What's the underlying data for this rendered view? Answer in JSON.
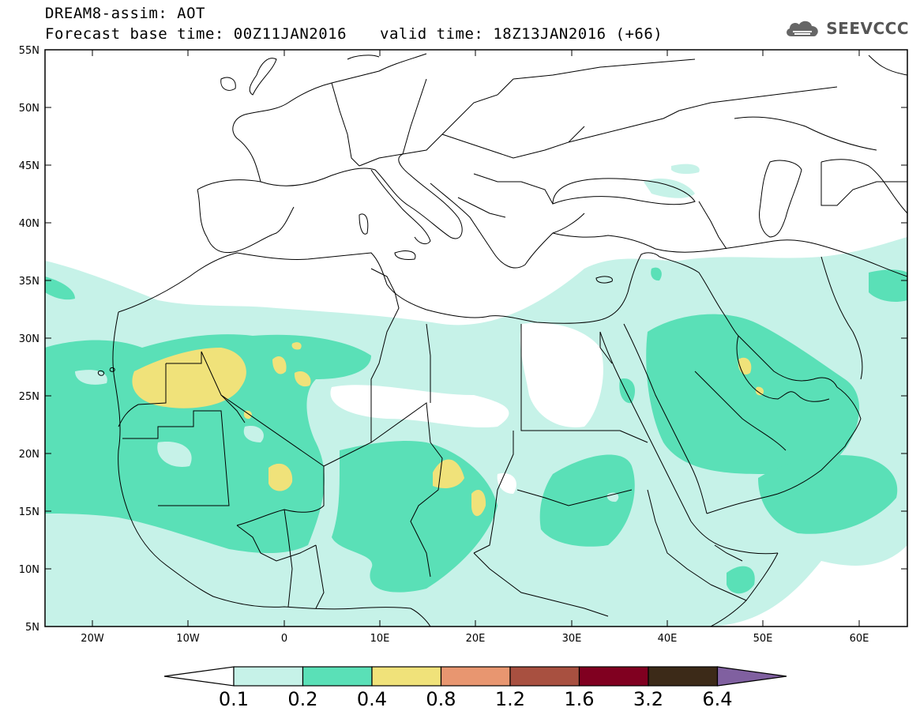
{
  "header": {
    "title": "DREAM8-assim: AOT",
    "base_time": "Forecast base time: 00Z11JAN2016",
    "valid_time": "valid time: 18Z13JAN2016 (+66)"
  },
  "logo": {
    "text": "SEEVCCC",
    "icon": "cloud-icon"
  },
  "map": {
    "lat_labels": [
      "55N",
      "50N",
      "45N",
      "40N",
      "35N",
      "30N",
      "25N",
      "20N",
      "15N",
      "10N",
      "5N"
    ],
    "lon_labels": [
      "20W",
      "10W",
      "0",
      "10E",
      "20E",
      "30E",
      "40E",
      "50E",
      "60E"
    ]
  },
  "colorbar": {
    "labels": [
      "0.1",
      "0.2",
      "0.4",
      "0.8",
      "1.2",
      "1.6",
      "3.2",
      "6.4"
    ],
    "colors": [
      "#ffffff",
      "#c6f2e8",
      "#5ae0b7",
      "#f0e27a",
      "#e89670",
      "#a85040",
      "#800020",
      "#3c2a18",
      "#8060a0"
    ]
  },
  "colors": {
    "light": "#c6f2e8",
    "medium": "#5ae0b7",
    "yellow": "#f0e27a",
    "border": "#000000"
  }
}
